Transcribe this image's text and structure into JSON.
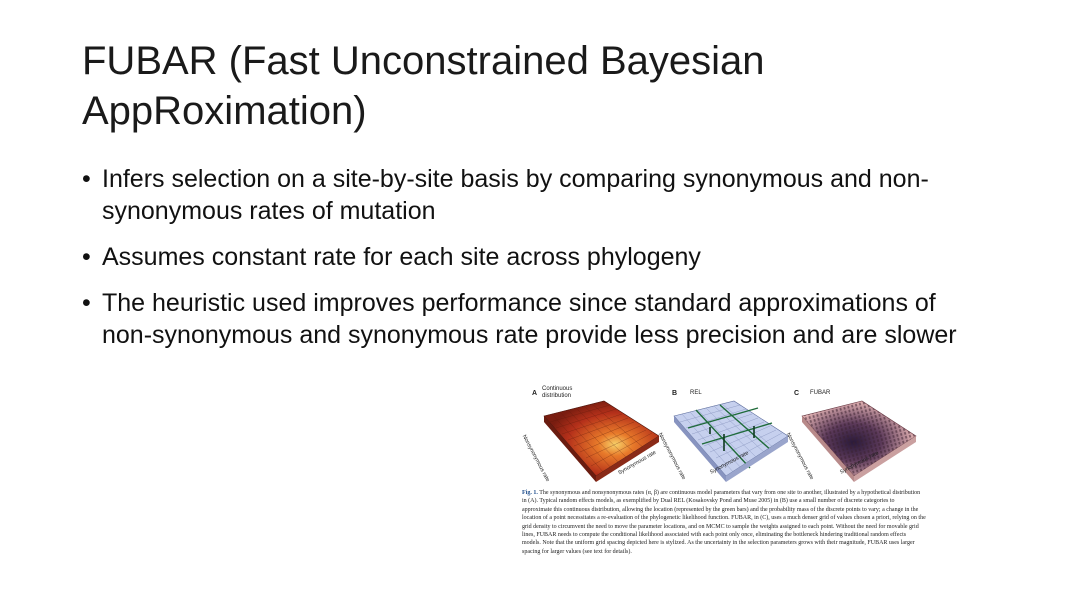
{
  "slide": {
    "title_line1": "FUBAR (Fast Unconstrained Bayesian",
    "title_line2": "AppRoximation)",
    "bullets": [
      "Infers selection on a site-by-site basis by comparing synonymous and non-synonymous rates of mutation",
      "Assumes constant rate for each site across phylogeny",
      "The heuristic used improves performance since standard approximations of non-synonymous and synonymous rate provide less precision and are slower"
    ],
    "bullet_glyph": "•"
  },
  "figure": {
    "panel_a_label": "A",
    "panel_a_title": "Continuous distribution",
    "panel_b_label": "B",
    "panel_b_title": "REL",
    "panel_c_label": "C",
    "panel_c_title": "FUBAR",
    "axis_nonsyn": "Nonsynonymous rate",
    "axis_syn": "Synonymous rate",
    "caption_lead": "Fig. 1.",
    "caption_text": "The synonymous and nonsynonymous rates (α, β) are continuous model parameters that vary from one site to another, illustrated by a hypothetical distribution in (A). Typical random effects models, as exemplified by Dual REL (Kosakovsky Pond and Muse 2005) in (B) use a small number of discrete categories to approximate this continuous distribution, allowing the location (represented by the green bars) and the probability mass of the discrete points to vary; a change in the location of a point necessitates a re-evaluation of the phylogenetic likelihood function. FUBAR, in (C), uses a much denser grid of values chosen a priori, relying on the grid density to circumvent the need to move the parameter locations, and on MCMC to sample the weights assigned to each point. Without the need for movable grid lines, FUBAR needs to compute the conditional likelihood associated with each point only once, eliminating the bottleneck hindering traditional random effects models. Note that the uniform grid spacing depicted here is stylized. As the uncertainty in the selection parameters grows with their magnitude, FUBAR uses larger spacing for larger values (see text for details).",
    "colors": {
      "panel_a": "#c8401e",
      "panel_b": "#b9c4e6",
      "panel_c": "#e9b8b8",
      "grid_green": "#1f6b3a",
      "bars_dark": "#2b2140"
    }
  }
}
